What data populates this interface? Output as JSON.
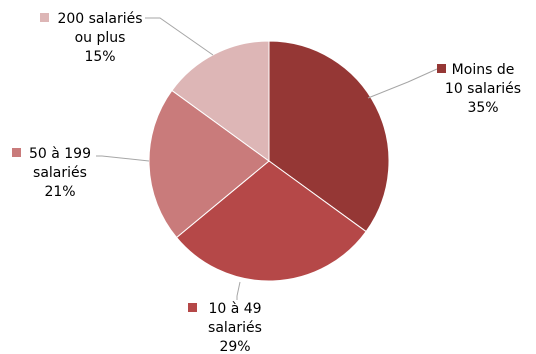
{
  "chart_data": {
    "type": "pie",
    "start_angle_deg": 0,
    "direction": "clockwise",
    "slices": [
      {
        "name": "Moins de 10 salariés",
        "value": 35,
        "label_lines": [
          "Moins de",
          "10 salariés",
          "35%"
        ],
        "color": "#953735"
      },
      {
        "name": "10 à 49 salariés",
        "value": 29,
        "label_lines": [
          "10 à 49",
          "salariés",
          "29%"
        ],
        "color": "#b54848"
      },
      {
        "name": "50 à 199 salariés",
        "value": 21,
        "label_lines": [
          "50 à 199",
          "salariés",
          "21%"
        ],
        "color": "#c97b7b"
      },
      {
        "name": "200 salariés ou plus",
        "value": 15,
        "label_lines": [
          "200 salariés",
          "ou plus",
          "15%"
        ],
        "color": "#ddb6b6"
      }
    ],
    "legend": "none",
    "label_position": "outside-with-leader-lines"
  }
}
